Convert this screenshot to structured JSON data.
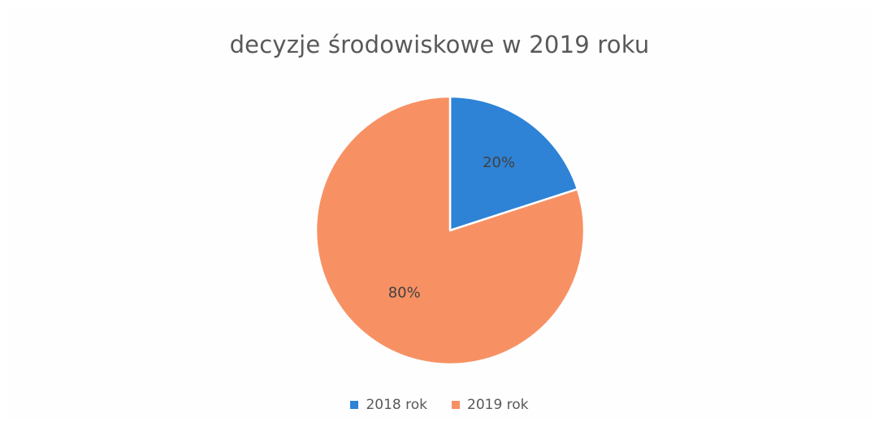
{
  "chart_data": {
    "type": "pie",
    "title": "decyzje środowiskowe w 2019 roku",
    "categories": [
      "2018 rok",
      "2019 rok"
    ],
    "values": [
      20,
      80
    ],
    "data_labels": [
      "20%",
      "80%"
    ],
    "colors": [
      "#2e83d6",
      "#f79164"
    ],
    "start_angle_deg": 0,
    "direction": "clockwise",
    "legend": {
      "position": "bottom",
      "entries": [
        "2018 rok",
        "2019 rok"
      ]
    }
  }
}
